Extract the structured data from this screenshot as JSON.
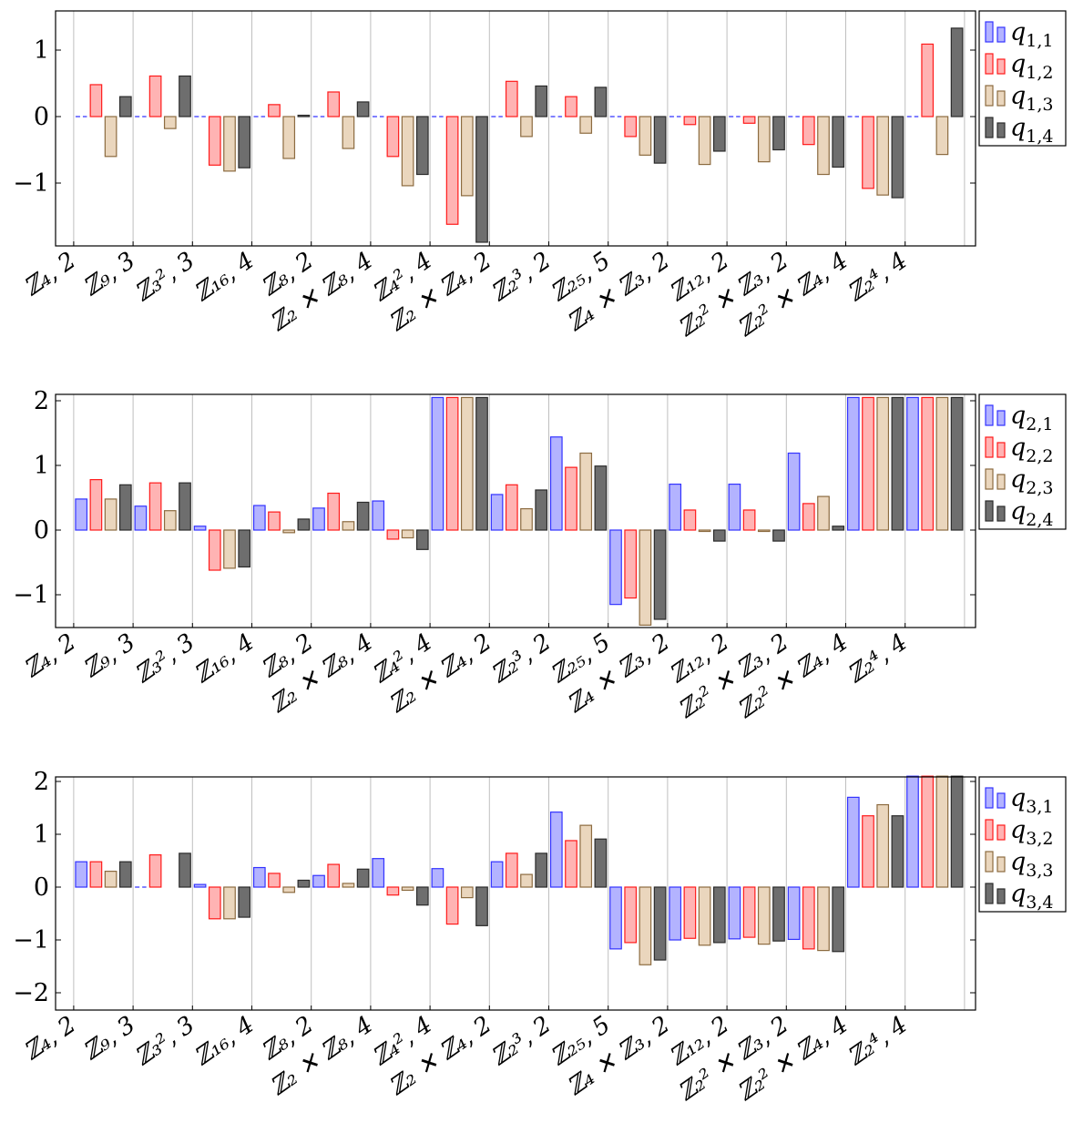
{
  "colors": {
    "series": [
      {
        "stroke": "#3333ff",
        "fill": "#b3b3ff"
      },
      {
        "stroke": "#ff1a1a",
        "fill": "#ffb3b3"
      },
      {
        "stroke": "#8c6b40",
        "fill": "#ead6bd"
      },
      {
        "stroke": "#2b2b2b",
        "fill": "#6e6e6e"
      }
    ],
    "grid": "#bfbfbf",
    "axis": "#000000"
  },
  "chart_data": [
    {
      "type": "bar",
      "categories": [
        "ℤ₄, 2",
        "ℤ₉, 3",
        "ℤ₃², 3",
        "ℤ₁₆, 4",
        "ℤ₈, 2",
        "ℤ₂ ✕ ℤ₈, 4",
        "ℤ₄², 4",
        "ℤ₂ ✕ ℤ₄, 2",
        "ℤ₂³, 2",
        "ℤ₂₅, 5",
        "ℤ₄ ✕ ℤ₃, 2",
        "ℤ₁₂, 2",
        "ℤ₂² ✕ ℤ₃, 2",
        "ℤ₂² ✕ ℤ₄, 4",
        "ℤ₂⁴, 4"
      ],
      "ylim": [
        -1.95,
        1.55
      ],
      "yticks": [
        "1",
        "0",
        "−1"
      ],
      "ytick_values": [
        1,
        0,
        -1
      ],
      "grid": true,
      "legend_position": "right",
      "series": [
        {
          "name": "q1,1",
          "values": [
            0,
            0,
            0,
            0,
            0,
            0,
            0,
            0,
            0,
            0,
            0,
            0,
            0,
            0,
            0
          ]
        },
        {
          "name": "q1,2",
          "values": [
            0.48,
            0.61,
            -0.73,
            0.18,
            0.37,
            -0.6,
            -1.62,
            0.53,
            0.3,
            -0.3,
            -0.12,
            -0.1,
            -0.42,
            -1.08,
            1.09
          ]
        },
        {
          "name": "q1,3",
          "values": [
            -0.6,
            -0.18,
            -0.82,
            -0.63,
            -0.48,
            -1.04,
            -1.19,
            -0.3,
            -0.25,
            -0.58,
            -0.72,
            -0.68,
            -0.87,
            -1.18,
            -0.57
          ]
        },
        {
          "name": "q1,4",
          "values": [
            0.3,
            0.61,
            -0.77,
            0.02,
            0.22,
            -0.87,
            -1.89,
            0.46,
            0.44,
            -0.7,
            -0.52,
            -0.5,
            -0.76,
            -1.22,
            1.33
          ]
        }
      ]
    },
    {
      "type": "bar",
      "categories": [
        "ℤ₄, 2",
        "ℤ₉, 3",
        "ℤ₃², 3",
        "ℤ₁₆, 4",
        "ℤ₈, 2",
        "ℤ₂ ✕ ℤ₈, 4",
        "ℤ₄², 4",
        "ℤ₂ ✕ ℤ₄, 2",
        "ℤ₂³, 2",
        "ℤ₂₅, 5",
        "ℤ₄ ✕ ℤ₃, 2",
        "ℤ₁₂, 2",
        "ℤ₂² ✕ ℤ₃, 2",
        "ℤ₂² ✕ ℤ₄, 4",
        "ℤ₂⁴, 4"
      ],
      "ylim": [
        -1.5,
        2.05
      ],
      "yticks": [
        "2",
        "1",
        "0",
        "−1"
      ],
      "ytick_values": [
        2,
        1,
        0,
        -1
      ],
      "grid": true,
      "legend_position": "right",
      "series": [
        {
          "name": "q2,1",
          "values": [
            0.48,
            0.37,
            0.06,
            0.38,
            0.34,
            0.45,
            2.05,
            0.55,
            1.44,
            -1.15,
            0.71,
            0.71,
            1.19,
            2.05,
            2.05
          ]
        },
        {
          "name": "q2,2",
          "values": [
            0.78,
            0.73,
            -0.62,
            0.28,
            0.57,
            -0.14,
            2.05,
            0.7,
            0.97,
            -1.05,
            0.31,
            0.31,
            0.41,
            2.05,
            2.05
          ]
        },
        {
          "name": "q2,3",
          "values": [
            0.48,
            0.3,
            -0.59,
            -0.04,
            0.13,
            -0.12,
            2.05,
            0.33,
            1.19,
            -1.47,
            -0.01,
            -0.01,
            0.52,
            2.05,
            2.05
          ]
        },
        {
          "name": "q2,4",
          "values": [
            0.7,
            0.73,
            -0.57,
            0.17,
            0.43,
            -0.3,
            2.05,
            0.62,
            0.99,
            -1.38,
            -0.17,
            -0.17,
            0.06,
            2.05,
            2.05
          ]
        }
      ]
    },
    {
      "type": "bar",
      "categories": [
        "ℤ₄, 2",
        "ℤ₉, 3",
        "ℤ₃², 3",
        "ℤ₁₆, 4",
        "ℤ₈, 2",
        "ℤ₂ ✕ ℤ₈, 4",
        "ℤ₄², 4",
        "ℤ₂ ✕ ℤ₄, 2",
        "ℤ₂³, 2",
        "ℤ₂₅, 5",
        "ℤ₄ ✕ ℤ₃, 2",
        "ℤ₁₂, 2",
        "ℤ₂² ✕ ℤ₃, 2",
        "ℤ₂² ✕ ℤ₄, 4",
        "ℤ₂⁴, 4"
      ],
      "ylim": [
        -2.4,
        2.1
      ],
      "yticks": [
        "2",
        "1",
        "0",
        "−1",
        "−2"
      ],
      "ytick_values": [
        2,
        1,
        0,
        -1,
        -2
      ],
      "grid": true,
      "legend_position": "right",
      "series": [
        {
          "name": "q3,1",
          "values": [
            0.48,
            0,
            0.05,
            0.37,
            0.22,
            0.54,
            0.35,
            0.48,
            1.42,
            -1.17,
            -1.0,
            -0.98,
            -0.99,
            1.7,
            2.1
          ]
        },
        {
          "name": "q3,2",
          "values": [
            0.48,
            0.61,
            -0.6,
            0.26,
            0.43,
            -0.15,
            -0.7,
            0.64,
            0.88,
            -1.05,
            -0.97,
            -0.95,
            -1.17,
            1.35,
            2.1
          ]
        },
        {
          "name": "q3,3",
          "values": [
            0.3,
            0,
            -0.6,
            -0.1,
            0.07,
            -0.06,
            -0.2,
            0.24,
            1.17,
            -1.47,
            -1.1,
            -1.08,
            -1.2,
            1.56,
            2.1
          ]
        },
        {
          "name": "q3,4",
          "values": [
            0.48,
            0.64,
            -0.57,
            0.13,
            0.34,
            -0.34,
            -0.73,
            0.64,
            0.91,
            -1.38,
            -1.05,
            -1.02,
            -1.22,
            1.35,
            2.1
          ]
        }
      ]
    }
  ]
}
